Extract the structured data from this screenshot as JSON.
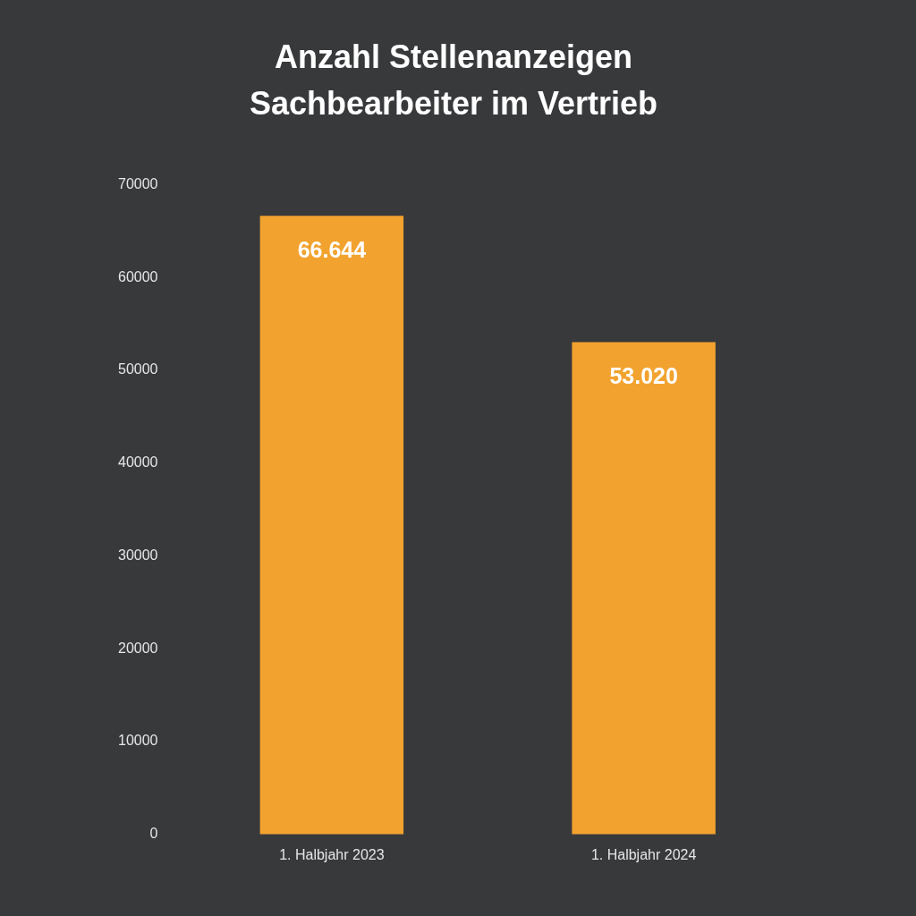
{
  "chart_data": {
    "type": "bar",
    "title": [
      "Anzahl Stellenanzeigen",
      "Sachbearbeiter im Vertrieb"
    ],
    "categories": [
      "1. Halbjahr 2023",
      "1. Halbjahr 2024"
    ],
    "values": [
      66644,
      53020
    ],
    "value_labels": [
      "66.644",
      "53.020"
    ],
    "color": "#f2a32f",
    "ylim": [
      0,
      70000
    ],
    "yticks": [
      0,
      10000,
      20000,
      30000,
      40000,
      50000,
      60000,
      70000
    ],
    "grid": false,
    "data_labels": true
  }
}
